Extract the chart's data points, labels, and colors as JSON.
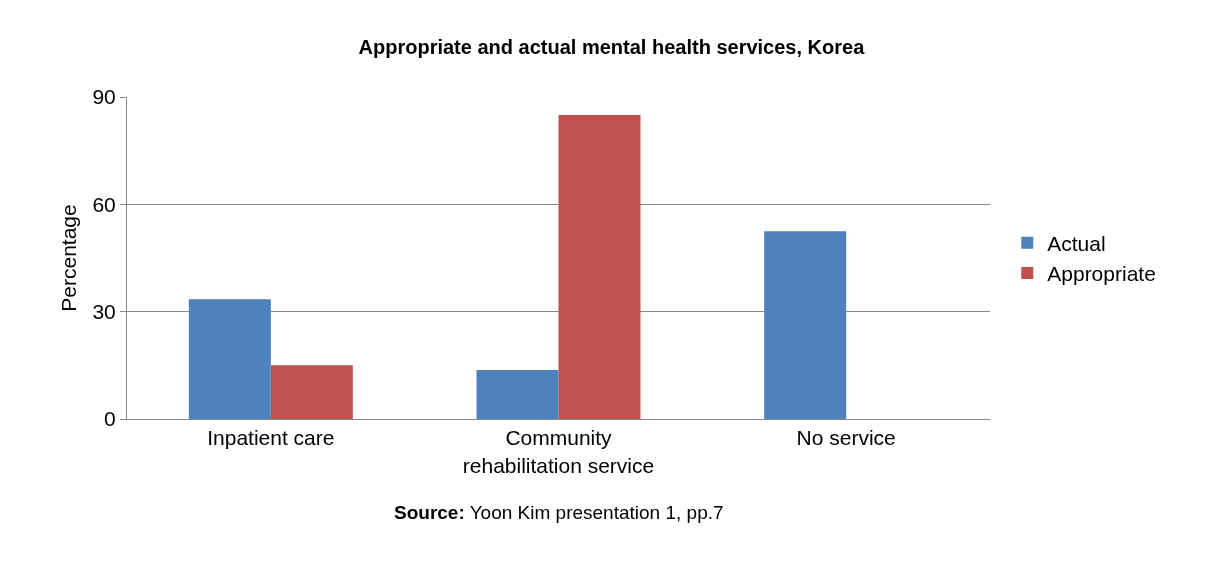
{
  "chart_data": {
    "type": "bar",
    "title": "Appropriate and actual mental health services, Korea",
    "ylabel": "Percentage",
    "categories": [
      "Inpatient care",
      "Community rehabilitation service",
      "No service"
    ],
    "series": [
      {
        "name": "Actual",
        "color": "#4f81bd",
        "values": [
          33.5,
          13.7,
          52.5
        ]
      },
      {
        "name": "Appropriate",
        "color": "#c0504d",
        "values": [
          15,
          85,
          0
        ]
      }
    ],
    "ylim": [
      0,
      90
    ],
    "yticks": [
      0,
      30,
      60,
      90
    ],
    "grid": "y",
    "legend": "right",
    "annotations": [
      "Source: Yoon Kim presentation 1, pp.7"
    ]
  }
}
